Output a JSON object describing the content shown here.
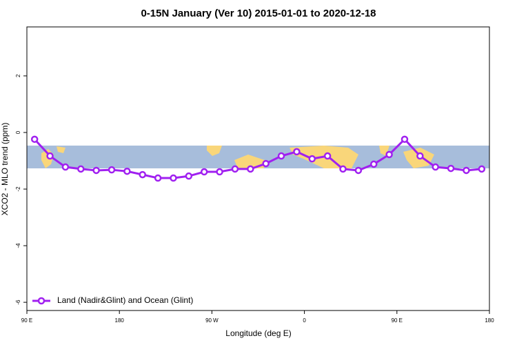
{
  "chart_data": {
    "type": "line",
    "title": "0-15N January (Ver 10)   2015-01-01 to 2020-12-18",
    "x_label": "Longitude (deg E)",
    "y_label": "XCO2 - MLO trend (ppm)",
    "x": [
      97.5,
      112.5,
      127.5,
      142.5,
      157.5,
      172.5,
      187.5,
      202.5,
      217.5,
      232.5,
      247.5,
      262.5,
      277.5,
      292.5,
      307.5,
      322.5,
      337.5,
      352.5,
      367.5,
      382.5,
      397.5,
      412.5,
      427.5,
      442.5,
      457.5,
      472.5,
      487.5,
      502.5,
      517.5,
      532.5
    ],
    "series": [
      {
        "name": "Land (Nadir&Glint) and Ocean (Glint)",
        "color": "#a020f0",
        "values": [
          -0.24,
          -0.83,
          -1.22,
          -1.29,
          -1.34,
          -1.32,
          -1.37,
          -1.49,
          -1.61,
          -1.61,
          -1.54,
          -1.39,
          -1.39,
          -1.29,
          -1.29,
          -1.1,
          -0.83,
          -0.68,
          -0.93,
          -0.83,
          -1.29,
          -1.34,
          -1.12,
          -0.78,
          -0.24,
          -0.83,
          -1.22,
          -1.27,
          -1.34,
          -1.29
        ]
      }
    ],
    "xlim": [
      90,
      540
    ],
    "xticks": [
      {
        "value": 90,
        "label": "90 E"
      },
      180,
      {
        "value": 270,
        "label": "90 W"
      },
      {
        "value": 360,
        "label": "0"
      },
      {
        "value": 450,
        "label": "90 E"
      },
      {
        "value": 540,
        "label": "180"
      }
    ],
    "ylim": [
      -6.29,
      3.73
    ],
    "yticks": [
      -6,
      -4,
      -2,
      0,
      2
    ],
    "legend": "bottom-left"
  }
}
